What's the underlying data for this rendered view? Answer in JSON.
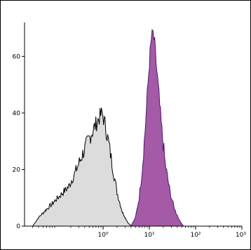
{
  "chart_data": {
    "type": "area",
    "title": "",
    "xlabel": "",
    "ylabel": "",
    "x_scale": "log",
    "xlim": [
      0.02,
      1000
    ],
    "ylim": [
      0,
      72
    ],
    "grid": false,
    "y_ticks": [
      0,
      20,
      40,
      60
    ],
    "y_tick_labels": [
      "0",
      "20",
      "40",
      "60"
    ],
    "x_ticks": [
      1,
      10,
      100,
      1000
    ],
    "x_tick_labels": [
      "10⁰",
      "10¹",
      "10²",
      "10³"
    ],
    "colors": {
      "control_fill": "#dcdcdc",
      "control_line": "#000000",
      "stained_fill": "#a45aa6",
      "stained_line": "#4b1a70",
      "axis": "#000000",
      "frame": "#000000"
    },
    "series": [
      {
        "key": "control",
        "x": [
          0.03,
          0.04,
          0.06,
          0.08,
          0.12,
          0.18,
          0.25,
          0.35,
          0.5,
          0.65,
          0.8,
          0.95,
          1.1,
          1.3,
          1.6,
          2.0,
          2.6,
          3.5,
          4.2
        ],
        "y": [
          0,
          3,
          6,
          8,
          11,
          14,
          19,
          25,
          31,
          35,
          38,
          40,
          36,
          30,
          21,
          12,
          5,
          1,
          0
        ]
      },
      {
        "key": "stained",
        "x": [
          4.0,
          5.0,
          6.0,
          7.0,
          8.0,
          9.0,
          10.0,
          11.0,
          12.0,
          13.0,
          15.0,
          18.0,
          22.0,
          28.0,
          35.0,
          45.0,
          55.0
        ],
        "y": [
          0,
          3,
          10,
          20,
          33,
          46,
          58,
          66,
          68,
          64,
          52,
          36,
          22,
          12,
          6,
          2,
          0
        ]
      }
    ]
  }
}
